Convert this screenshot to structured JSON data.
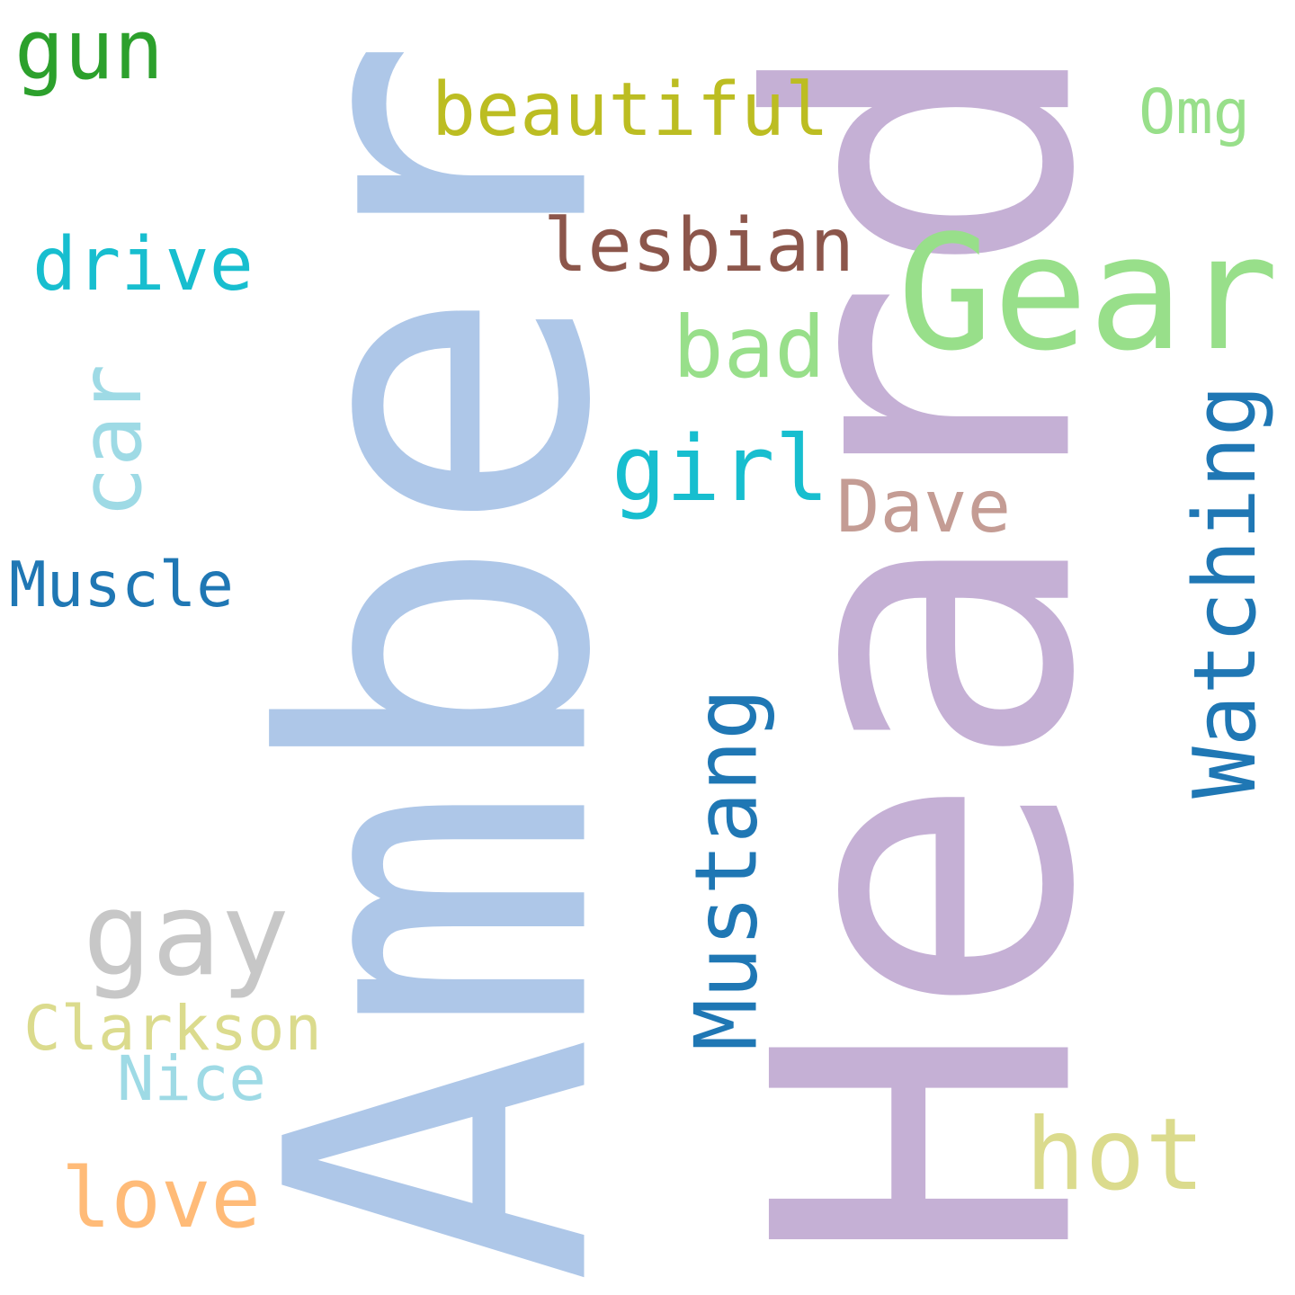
{
  "words": [
    {
      "key": "amber",
      "text": "Amber",
      "color": "#aec7e8",
      "orientation": "vertical"
    },
    {
      "key": "heard",
      "text": "Heard",
      "color": "#c5b0d5",
      "orientation": "vertical"
    },
    {
      "key": "gear",
      "text": "Gear",
      "color": "#98df8a",
      "orientation": "horizontal"
    },
    {
      "key": "watching",
      "text": "Watching",
      "color": "#1f77b4",
      "orientation": "vertical"
    },
    {
      "key": "mustang",
      "text": "Mustang",
      "color": "#1f77b4",
      "orientation": "vertical"
    },
    {
      "key": "car",
      "text": "car",
      "color": "#9edae5",
      "orientation": "vertical"
    },
    {
      "key": "gay",
      "text": "gay",
      "color": "#c7c7c7",
      "orientation": "horizontal"
    },
    {
      "key": "hot",
      "text": "hot",
      "color": "#dbdb8d",
      "orientation": "horizontal"
    },
    {
      "key": "girl",
      "text": "girl",
      "color": "#17becf",
      "orientation": "horizontal"
    },
    {
      "key": "beautiful",
      "text": "beautiful",
      "color": "#bcbd22",
      "orientation": "horizontal"
    },
    {
      "key": "lesbian",
      "text": "lesbian",
      "color": "#8c564b",
      "orientation": "horizontal"
    },
    {
      "key": "bad",
      "text": "bad",
      "color": "#98df8a",
      "orientation": "horizontal"
    },
    {
      "key": "gun",
      "text": "gun",
      "color": "#2ca02c",
      "orientation": "horizontal"
    },
    {
      "key": "love",
      "text": "love",
      "color": "#ffbb78",
      "orientation": "horizontal"
    },
    {
      "key": "drive",
      "text": "drive",
      "color": "#17becf",
      "orientation": "horizontal"
    },
    {
      "key": "dave",
      "text": "Dave",
      "color": "#c49c94",
      "orientation": "horizontal"
    },
    {
      "key": "clarkson",
      "text": "Clarkson",
      "color": "#dbdb8d",
      "orientation": "horizontal"
    },
    {
      "key": "muscle",
      "text": "Muscle",
      "color": "#1f77b4",
      "orientation": "horizontal"
    },
    {
      "key": "nice",
      "text": "Nice",
      "color": "#9edae5",
      "orientation": "horizontal"
    },
    {
      "key": "omg",
      "text": "Omg",
      "color": "#98df8a",
      "orientation": "horizontal"
    }
  ]
}
